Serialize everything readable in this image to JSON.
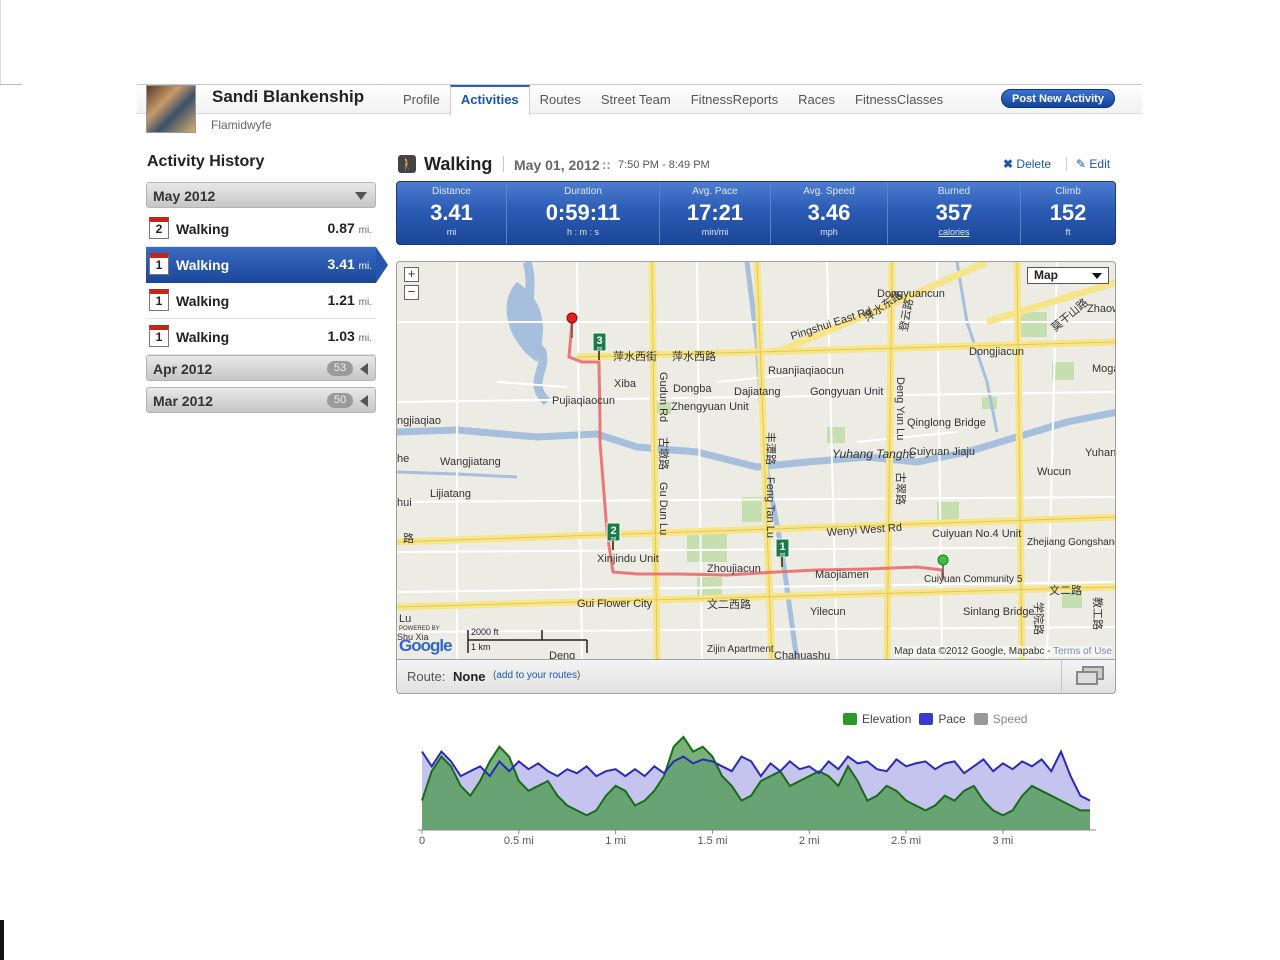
{
  "user": {
    "name": "Sandi Blankenship",
    "handle": "Flamidwyfe"
  },
  "nav": {
    "tabs": [
      {
        "label": "Profile",
        "active": false
      },
      {
        "label": "Activities",
        "active": true
      },
      {
        "label": "Routes",
        "active": false
      },
      {
        "label": "Street Team",
        "active": false
      },
      {
        "label": "FitnessReports",
        "active": false
      },
      {
        "label": "Races",
        "active": false
      },
      {
        "label": "FitnessClasses",
        "active": false
      }
    ],
    "post_button": "Post New Activity"
  },
  "sidebar": {
    "title": "Activity History",
    "months": [
      {
        "label": "May 2012",
        "expanded": true,
        "count": ""
      },
      {
        "label": "Apr 2012",
        "expanded": false,
        "count": "53"
      },
      {
        "label": "Mar 2012",
        "expanded": false,
        "count": "50"
      }
    ],
    "activities": [
      {
        "day": "2",
        "name": "Walking",
        "distance": "0.87",
        "unit": "mi.",
        "selected": false
      },
      {
        "day": "1",
        "name": "Walking",
        "distance": "3.41",
        "unit": "mi.",
        "selected": true
      },
      {
        "day": "1",
        "name": "Walking",
        "distance": "1.21",
        "unit": "mi.",
        "selected": false
      },
      {
        "day": "1",
        "name": "Walking",
        "distance": "1.03",
        "unit": "mi.",
        "selected": false
      }
    ]
  },
  "activity": {
    "type": "Walking",
    "date": "May 01, 2012",
    "date_sep": "::",
    "time": "7:50 PM - 8:49 PM",
    "delete_label": "Delete",
    "edit_label": "Edit",
    "stats": [
      {
        "label": "Distance",
        "value": "3.41",
        "unit": "mi"
      },
      {
        "label": "Duration",
        "value": "0:59:11",
        "unit": "h : m : s"
      },
      {
        "label": "Avg. Pace",
        "value": "17:21",
        "unit": "min/mi"
      },
      {
        "label": "Avg. Speed",
        "value": "3.46",
        "unit": "mph"
      },
      {
        "label": "Burned",
        "value": "357",
        "unit": "calories"
      },
      {
        "label": "Climb",
        "value": "152",
        "unit": "ft"
      }
    ]
  },
  "map": {
    "type_label": "Map",
    "zoom_in": "+",
    "zoom_out": "−",
    "attribution": "Map data ©2012 Google, Mapabc - ",
    "terms": "Terms of Use",
    "powered_by": "POWERED BY",
    "logo": "Google",
    "scale_ft": "2000 ft",
    "scale_km": "1 km",
    "mile_markers": [
      "1",
      "2",
      "3"
    ],
    "mile_unit": "mi",
    "labels": [
      "Dongyuancun",
      "Dongjiacun",
      "Pingshui East Rd",
      "萍水东路",
      "萍水西街",
      "萍水西路",
      "Xiba",
      "Dongba",
      "Dajiatang",
      "Ruanjiaqiaocun",
      "Gongyuan Unit",
      "Zhengyuan Unit",
      "Pujiaqiaocun",
      "Qinglong Bridge",
      "Cuiyuan Jiaju",
      "Yuhang Tanghe",
      "Wucun",
      "Yuhan",
      "Wangjiatang",
      "Lijiatang",
      "Gudun Rd",
      "古墩路",
      "Gu Dun Lu",
      "丰潭路",
      "Feng Tan Lu",
      "Deng Yun Lu",
      "登云路",
      "古翠路",
      "Wenyi West Rd",
      "Cuiyuan No.4 Unit",
      "Zhejiang Gongshang University",
      "Xinjindu Unit",
      "Zhoujiacun",
      "Maojiamen",
      "Cuiyuan Community 5",
      "文二西路",
      "文二路",
      "Gui Flower City",
      "Yilecun",
      "Sinlang Bridge",
      "学院路",
      "教工路",
      "Zijin Apartment",
      "Chahuashu",
      "Deng",
      "ngjiaqiao",
      "莫干山路",
      "Zhaow",
      "Moga",
      "he",
      "hui",
      "路",
      "Lu",
      "Shu Xia"
    ]
  },
  "route": {
    "label": "Route:",
    "value": "None",
    "add_link": "add to your routes"
  },
  "chart_data": {
    "type": "area",
    "xlabel": "",
    "ylabel": "",
    "x_ticks": [
      "0",
      "0.5 mi",
      "1 mi",
      "1.5 mi",
      "2 mi",
      "2.5 mi",
      "3 mi"
    ],
    "x_tick_values": [
      0,
      0.5,
      1,
      1.5,
      2,
      2.5,
      3
    ],
    "xlim": [
      0,
      3.45
    ],
    "ylim": [
      0,
      100
    ],
    "legend": [
      {
        "name": "Elevation",
        "color": "#2a9a2a",
        "visible": true
      },
      {
        "name": "Pace",
        "color": "#3a3acc",
        "visible": true
      },
      {
        "name": "Speed",
        "color": "#999999",
        "visible": false
      }
    ],
    "series": [
      {
        "name": "Elevation",
        "x": [
          0,
          0.05,
          0.1,
          0.15,
          0.2,
          0.25,
          0.3,
          0.35,
          0.4,
          0.45,
          0.5,
          0.55,
          0.6,
          0.65,
          0.7,
          0.75,
          0.8,
          0.85,
          0.9,
          0.95,
          1.0,
          1.05,
          1.1,
          1.15,
          1.2,
          1.25,
          1.3,
          1.35,
          1.4,
          1.45,
          1.5,
          1.55,
          1.6,
          1.65,
          1.7,
          1.75,
          1.8,
          1.85,
          1.9,
          1.95,
          2.0,
          2.05,
          2.1,
          2.15,
          2.2,
          2.25,
          2.3,
          2.35,
          2.4,
          2.45,
          2.5,
          2.55,
          2.6,
          2.65,
          2.7,
          2.75,
          2.8,
          2.85,
          2.9,
          2.95,
          3.0,
          3.05,
          3.1,
          3.15,
          3.2,
          3.25,
          3.3,
          3.35,
          3.4,
          3.45
        ],
        "values": [
          30,
          60,
          75,
          65,
          45,
          35,
          50,
          70,
          85,
          75,
          50,
          40,
          45,
          50,
          35,
          25,
          20,
          15,
          20,
          35,
          45,
          40,
          25,
          30,
          40,
          55,
          85,
          95,
          80,
          85,
          75,
          55,
          45,
          30,
          35,
          50,
          55,
          60,
          45,
          50,
          55,
          60,
          55,
          45,
          65,
          50,
          30,
          35,
          45,
          40,
          30,
          25,
          20,
          25,
          35,
          30,
          40,
          45,
          30,
          20,
          15,
          20,
          35,
          45,
          40,
          35,
          30,
          25,
          20,
          20
        ]
      },
      {
        "name": "Pace",
        "x": [
          0,
          0.05,
          0.1,
          0.15,
          0.2,
          0.25,
          0.3,
          0.35,
          0.4,
          0.45,
          0.5,
          0.55,
          0.6,
          0.65,
          0.7,
          0.75,
          0.8,
          0.85,
          0.9,
          0.95,
          1.0,
          1.05,
          1.1,
          1.15,
          1.2,
          1.25,
          1.3,
          1.35,
          1.4,
          1.45,
          1.5,
          1.55,
          1.6,
          1.65,
          1.7,
          1.75,
          1.8,
          1.85,
          1.9,
          1.95,
          2.0,
          2.05,
          2.1,
          2.15,
          2.2,
          2.25,
          2.3,
          2.35,
          2.4,
          2.45,
          2.5,
          2.55,
          2.6,
          2.65,
          2.7,
          2.75,
          2.8,
          2.85,
          2.9,
          2.95,
          3.0,
          3.05,
          3.1,
          3.15,
          3.2,
          3.25,
          3.3,
          3.35,
          3.4,
          3.45
        ],
        "values": [
          80,
          65,
          80,
          70,
          55,
          60,
          65,
          55,
          70,
          60,
          70,
          62,
          68,
          60,
          55,
          62,
          58,
          65,
          55,
          60,
          62,
          55,
          62,
          55,
          65,
          58,
          70,
          75,
          68,
          72,
          70,
          65,
          60,
          75,
          70,
          55,
          68,
          60,
          70,
          62,
          65,
          58,
          70,
          62,
          75,
          68,
          70,
          62,
          60,
          72,
          65,
          68,
          70,
          62,
          68,
          70,
          58,
          65,
          72,
          60,
          68,
          62,
          70,
          65,
          72,
          60,
          80,
          55,
          35,
          30
        ]
      }
    ]
  }
}
